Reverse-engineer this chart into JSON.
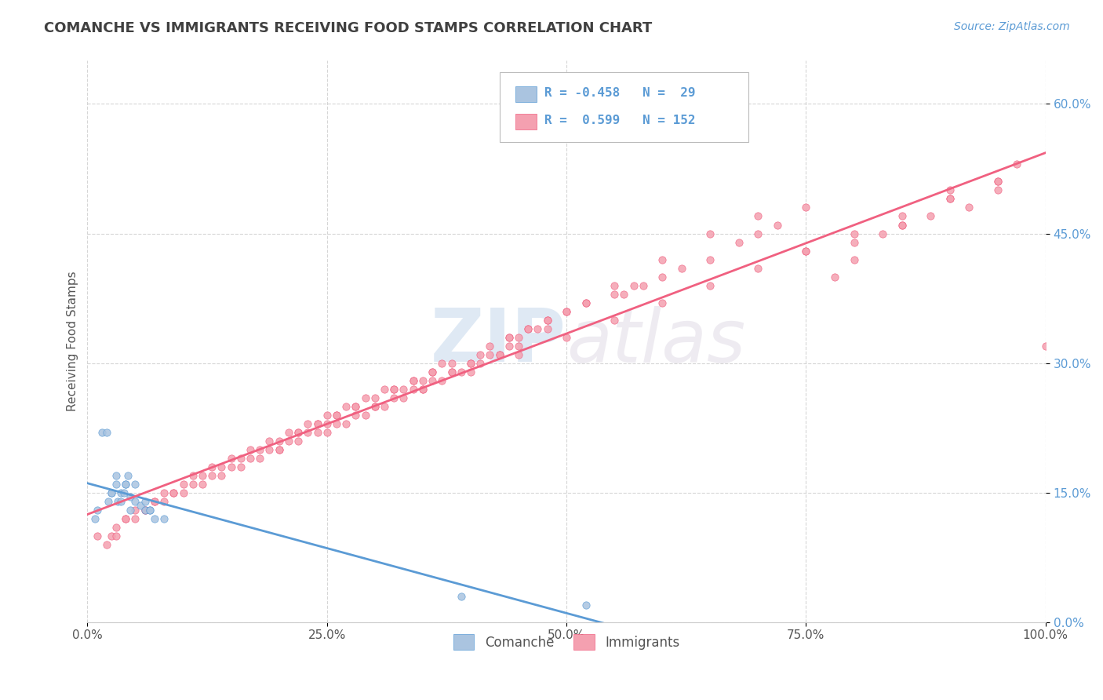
{
  "title": "COMANCHE VS IMMIGRANTS RECEIVING FOOD STAMPS CORRELATION CHART",
  "source": "Source: ZipAtlas.com",
  "ylabel": "Receiving Food Stamps",
  "watermark_zip": "ZIP",
  "watermark_atlas": "atlas",
  "xlim": [
    0.0,
    1.0
  ],
  "ylim": [
    0.0,
    0.65
  ],
  "xticks": [
    0.0,
    0.25,
    0.5,
    0.75,
    1.0
  ],
  "yticks": [
    0.0,
    0.15,
    0.3,
    0.45,
    0.6
  ],
  "xtick_labels": [
    "0.0%",
    "25.0%",
    "50.0%",
    "75.0%",
    "100.0%"
  ],
  "ytick_labels": [
    "0.0%",
    "15.0%",
    "30.0%",
    "45.0%",
    "60.0%"
  ],
  "background_color": "#ffffff",
  "grid_color": "#cccccc",
  "comanche_fill": "#aac4e0",
  "immigrants_fill": "#f4a0b0",
  "comanche_edge": "#5b9bd5",
  "immigrants_edge": "#f06080",
  "comanche_line": "#5b9bd5",
  "immigrants_line": "#f06080",
  "title_color": "#404040",
  "source_color": "#5b9bd5",
  "legend_text_color": "#5b9bd5",
  "axis_color": "#555555",
  "comanche_x": [
    0.008,
    0.01,
    0.015,
    0.02,
    0.022,
    0.025,
    0.025,
    0.03,
    0.03,
    0.032,
    0.035,
    0.035,
    0.038,
    0.04,
    0.04,
    0.042,
    0.045,
    0.045,
    0.05,
    0.05,
    0.055,
    0.06,
    0.06,
    0.065,
    0.065,
    0.07,
    0.08,
    0.39,
    0.52
  ],
  "comanche_y": [
    0.12,
    0.13,
    0.22,
    0.22,
    0.14,
    0.15,
    0.15,
    0.16,
    0.17,
    0.14,
    0.14,
    0.15,
    0.15,
    0.16,
    0.16,
    0.17,
    0.13,
    0.145,
    0.14,
    0.16,
    0.135,
    0.13,
    0.14,
    0.13,
    0.13,
    0.12,
    0.12,
    0.03,
    0.02
  ],
  "immigrants_x": [
    0.01,
    0.02,
    0.025,
    0.03,
    0.04,
    0.05,
    0.06,
    0.07,
    0.08,
    0.09,
    0.1,
    0.11,
    0.12,
    0.13,
    0.14,
    0.15,
    0.16,
    0.17,
    0.18,
    0.19,
    0.2,
    0.21,
    0.22,
    0.23,
    0.24,
    0.25,
    0.26,
    0.27,
    0.28,
    0.29,
    0.3,
    0.31,
    0.32,
    0.33,
    0.34,
    0.35,
    0.36,
    0.37,
    0.38,
    0.39,
    0.4,
    0.41,
    0.42,
    0.43,
    0.44,
    0.45,
    0.46,
    0.47,
    0.48,
    0.5,
    0.52,
    0.55,
    0.57,
    0.6,
    0.62,
    0.65,
    0.68,
    0.7,
    0.72,
    0.75,
    0.78,
    0.8,
    0.83,
    0.85,
    0.88,
    0.9,
    0.92,
    0.95,
    0.97,
    1.0,
    0.05,
    0.08,
    0.1,
    0.13,
    0.15,
    0.18,
    0.2,
    0.23,
    0.25,
    0.28,
    0.3,
    0.33,
    0.35,
    0.38,
    0.4,
    0.43,
    0.45,
    0.48,
    0.5,
    0.03,
    0.06,
    0.09,
    0.12,
    0.16,
    0.19,
    0.22,
    0.26,
    0.29,
    0.32,
    0.36,
    0.14,
    0.17,
    0.21,
    0.24,
    0.27,
    0.31,
    0.34,
    0.37,
    0.41,
    0.44,
    0.07,
    0.11,
    0.04,
    0.55,
    0.6,
    0.65,
    0.7,
    0.75,
    0.8,
    0.85,
    0.9,
    0.95,
    0.25,
    0.3,
    0.35,
    0.4,
    0.45,
    0.5,
    0.55,
    0.6,
    0.65,
    0.7,
    0.75,
    0.8,
    0.85,
    0.9,
    0.95,
    0.2,
    0.22,
    0.24,
    0.26,
    0.28,
    0.32,
    0.34,
    0.36,
    0.38,
    0.42,
    0.44,
    0.46,
    0.48,
    0.52,
    0.56,
    0.58
  ],
  "immigrants_y": [
    0.1,
    0.09,
    0.1,
    0.11,
    0.12,
    0.12,
    0.13,
    0.14,
    0.14,
    0.15,
    0.15,
    0.16,
    0.16,
    0.17,
    0.17,
    0.18,
    0.18,
    0.19,
    0.19,
    0.2,
    0.2,
    0.21,
    0.21,
    0.22,
    0.22,
    0.22,
    0.23,
    0.23,
    0.24,
    0.24,
    0.25,
    0.25,
    0.26,
    0.26,
    0.27,
    0.27,
    0.28,
    0.28,
    0.29,
    0.29,
    0.3,
    0.3,
    0.31,
    0.31,
    0.32,
    0.33,
    0.34,
    0.34,
    0.35,
    0.36,
    0.37,
    0.38,
    0.39,
    0.4,
    0.41,
    0.42,
    0.44,
    0.45,
    0.46,
    0.48,
    0.4,
    0.42,
    0.45,
    0.46,
    0.47,
    0.5,
    0.48,
    0.51,
    0.53,
    0.32,
    0.13,
    0.15,
    0.16,
    0.18,
    0.19,
    0.2,
    0.21,
    0.23,
    0.24,
    0.25,
    0.26,
    0.27,
    0.28,
    0.29,
    0.3,
    0.31,
    0.32,
    0.34,
    0.36,
    0.1,
    0.13,
    0.15,
    0.17,
    0.19,
    0.21,
    0.22,
    0.24,
    0.26,
    0.27,
    0.29,
    0.18,
    0.2,
    0.22,
    0.23,
    0.25,
    0.27,
    0.28,
    0.3,
    0.31,
    0.33,
    0.14,
    0.17,
    0.12,
    0.39,
    0.42,
    0.45,
    0.47,
    0.43,
    0.44,
    0.46,
    0.49,
    0.5,
    0.23,
    0.25,
    0.27,
    0.29,
    0.31,
    0.33,
    0.35,
    0.37,
    0.39,
    0.41,
    0.43,
    0.45,
    0.47,
    0.49,
    0.51,
    0.2,
    0.22,
    0.23,
    0.24,
    0.25,
    0.27,
    0.28,
    0.29,
    0.3,
    0.32,
    0.33,
    0.34,
    0.35,
    0.37,
    0.38,
    0.39
  ]
}
